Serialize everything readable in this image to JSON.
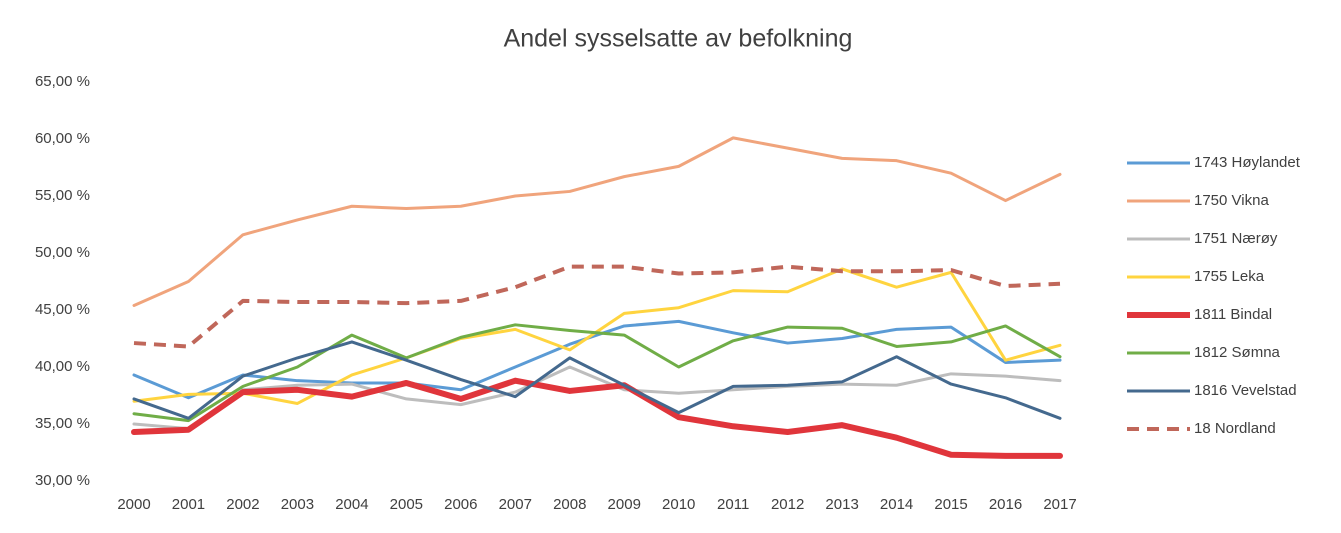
{
  "chart_data": {
    "type": "line",
    "title": "Andel sysselsatte av befolkning",
    "categories": [
      "2000",
      "2001",
      "2002",
      "2003",
      "2004",
      "2005",
      "2006",
      "2007",
      "2008",
      "2009",
      "2010",
      "2011",
      "2012",
      "2013",
      "2014",
      "2015",
      "2016",
      "2017"
    ],
    "ylim": [
      30,
      65
    ],
    "yticks": [
      {
        "value": 30,
        "label": "30,00 %"
      },
      {
        "value": 35,
        "label": "35,00 %"
      },
      {
        "value": 40,
        "label": "40,00 %"
      },
      {
        "value": 45,
        "label": "45,00 %"
      },
      {
        "value": 50,
        "label": "50,00 %"
      },
      {
        "value": 55,
        "label": "55,00 %"
      },
      {
        "value": 60,
        "label": "60,00 %"
      },
      {
        "value": 65,
        "label": "65,00 %"
      }
    ],
    "grid": false,
    "legend": "right",
    "series": [
      {
        "name": "1743 Høylandet",
        "color": "#5b9bd5",
        "line_width": 3,
        "values": [
          39.3,
          37.3,
          39.3,
          38.8,
          38.6,
          38.6,
          38.0,
          40.0,
          42.0,
          43.6,
          44.0,
          43.0,
          42.1,
          42.5,
          43.3,
          43.5,
          40.4,
          40.6
        ]
      },
      {
        "name": "1750 Vikna",
        "color": "#f0a47c",
        "line_width": 3,
        "values": [
          45.4,
          47.5,
          51.6,
          52.9,
          54.1,
          53.9,
          54.1,
          55.0,
          55.4,
          56.7,
          57.6,
          60.1,
          59.2,
          58.3,
          58.1,
          57.0,
          54.6,
          56.9
        ]
      },
      {
        "name": "1751 Nærøy",
        "color": "#bdbdbd",
        "line_width": 3,
        "values": [
          35.0,
          34.6,
          38.0,
          38.4,
          38.5,
          37.2,
          36.7,
          37.8,
          40.0,
          38.0,
          37.7,
          38.0,
          38.3,
          38.5,
          38.4,
          39.4,
          39.2,
          38.8
        ]
      },
      {
        "name": "1755 Leka",
        "color": "#ffd43f",
        "line_width": 3,
        "values": [
          37.0,
          37.6,
          37.7,
          36.8,
          39.3,
          40.8,
          42.5,
          43.3,
          41.5,
          44.7,
          45.2,
          46.7,
          46.6,
          48.6,
          47.0,
          48.3,
          40.6,
          41.9
        ]
      },
      {
        "name": "1811 Bindal",
        "color": "#e0353b",
        "line_width": 6,
        "values": [
          34.3,
          34.5,
          37.8,
          38.0,
          37.4,
          38.6,
          37.2,
          38.8,
          37.9,
          38.4,
          35.6,
          34.8,
          34.3,
          34.9,
          33.8,
          32.3,
          32.2,
          32.2
        ]
      },
      {
        "name": "1812 Sømna",
        "color": "#70ad47",
        "line_width": 3,
        "values": [
          35.9,
          35.3,
          38.3,
          40.0,
          42.8,
          40.8,
          42.6,
          43.7,
          43.2,
          42.8,
          40.0,
          42.3,
          43.5,
          43.4,
          41.8,
          42.2,
          43.6,
          40.9
        ]
      },
      {
        "name": "1816 Vevelstad",
        "color": "#44698e",
        "line_width": 3,
        "values": [
          37.2,
          35.5,
          39.2,
          40.8,
          42.2,
          40.6,
          38.9,
          37.4,
          40.8,
          38.4,
          36.0,
          38.3,
          38.4,
          38.7,
          40.9,
          38.5,
          37.3,
          35.5
        ]
      },
      {
        "name": "18 Nordland",
        "color": "#c0675a",
        "line_width": 4,
        "dashed": true,
        "values": [
          42.1,
          41.8,
          45.8,
          45.7,
          45.7,
          45.6,
          45.8,
          47.0,
          48.8,
          48.8,
          48.2,
          48.3,
          48.8,
          48.4,
          48.4,
          48.5,
          47.1,
          47.3
        ]
      }
    ]
  }
}
